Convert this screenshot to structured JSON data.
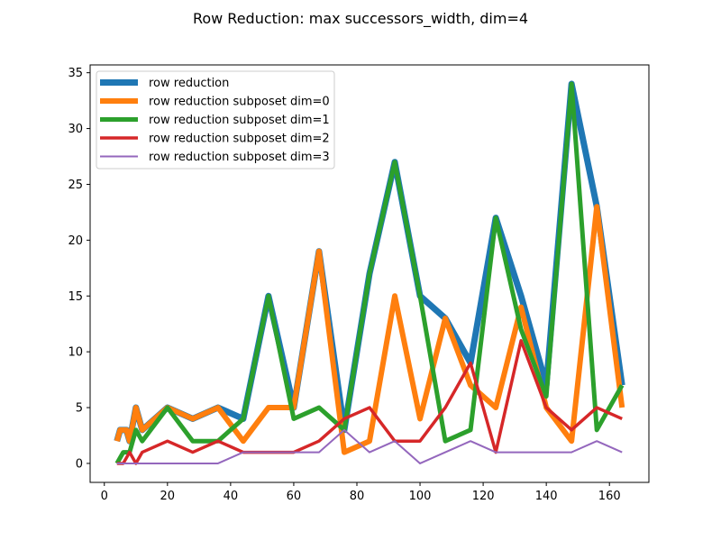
{
  "chart_data": {
    "type": "line",
    "title": "Row Reduction: max successors_width, dim=4",
    "xlabel": "",
    "ylabel": "",
    "xlim": [
      -4.5,
      172.5
    ],
    "ylim": [
      -1.7,
      35.7
    ],
    "xticks": [
      0,
      20,
      40,
      60,
      80,
      100,
      120,
      140,
      160
    ],
    "yticks": [
      0,
      5,
      10,
      15,
      20,
      25,
      30,
      35
    ],
    "grid": false,
    "legend_position": "upper-left",
    "series": [
      {
        "name": "row reduction",
        "color": "#1f77b4",
        "width": 7,
        "x": [
          4,
          5,
          7,
          8,
          10,
          12,
          20,
          28,
          36,
          44,
          52,
          60,
          68,
          76,
          84,
          92,
          100,
          108,
          116,
          124,
          132,
          140,
          148,
          156,
          164
        ],
        "y": [
          2,
          3,
          3,
          2,
          5,
          3,
          5,
          4,
          5,
          4,
          15,
          5,
          19,
          3,
          17,
          27,
          15,
          13,
          9,
          22,
          15,
          7,
          34,
          23,
          7
        ]
      },
      {
        "name": "row reduction subposet dim=0",
        "color": "#ff7f0e",
        "width": 6,
        "x": [
          4,
          5,
          7,
          8,
          10,
          12,
          20,
          28,
          36,
          44,
          52,
          60,
          68,
          76,
          84,
          92,
          100,
          108,
          116,
          124,
          132,
          140,
          148,
          156,
          164
        ],
        "y": [
          2,
          3,
          3,
          2,
          5,
          3,
          5,
          4,
          5,
          2,
          5,
          5,
          19,
          1,
          2,
          15,
          4,
          13,
          7,
          5,
          14,
          5,
          2,
          23,
          5
        ]
      },
      {
        "name": "row reduction subposet dim=1",
        "color": "#2ca02c",
        "width": 5,
        "x": [
          4,
          6,
          8,
          10,
          12,
          20,
          28,
          36,
          44,
          52,
          60,
          68,
          76,
          84,
          92,
          100,
          108,
          116,
          124,
          132,
          140,
          148,
          156,
          164
        ],
        "y": [
          0,
          1,
          1,
          3,
          2,
          5,
          2,
          2,
          4,
          15,
          4,
          5,
          3,
          17,
          27,
          15,
          2,
          3,
          22,
          12,
          6,
          34,
          3,
          7
        ]
      },
      {
        "name": "row reduction subposet dim=2",
        "color": "#d62728",
        "width": 3.5,
        "x": [
          4,
          6,
          8,
          10,
          12,
          20,
          28,
          36,
          44,
          52,
          60,
          68,
          76,
          84,
          92,
          100,
          108,
          116,
          124,
          132,
          140,
          148,
          156,
          164
        ],
        "y": [
          0,
          0,
          1,
          0,
          1,
          2,
          1,
          2,
          1,
          1,
          1,
          2,
          4,
          5,
          2,
          2,
          5,
          9,
          1,
          11,
          5,
          3,
          5,
          4
        ]
      },
      {
        "name": "row reduction subposet dim=3",
        "color": "#9467bd",
        "width": 2,
        "x": [
          4,
          6,
          8,
          10,
          12,
          20,
          28,
          36,
          44,
          52,
          60,
          68,
          76,
          84,
          92,
          100,
          108,
          116,
          124,
          132,
          140,
          148,
          156,
          164
        ],
        "y": [
          0,
          0,
          0,
          0,
          0,
          0,
          0,
          0,
          1,
          1,
          1,
          1,
          3,
          1,
          2,
          0,
          1,
          2,
          1,
          1,
          1,
          1,
          2,
          1
        ]
      }
    ]
  }
}
